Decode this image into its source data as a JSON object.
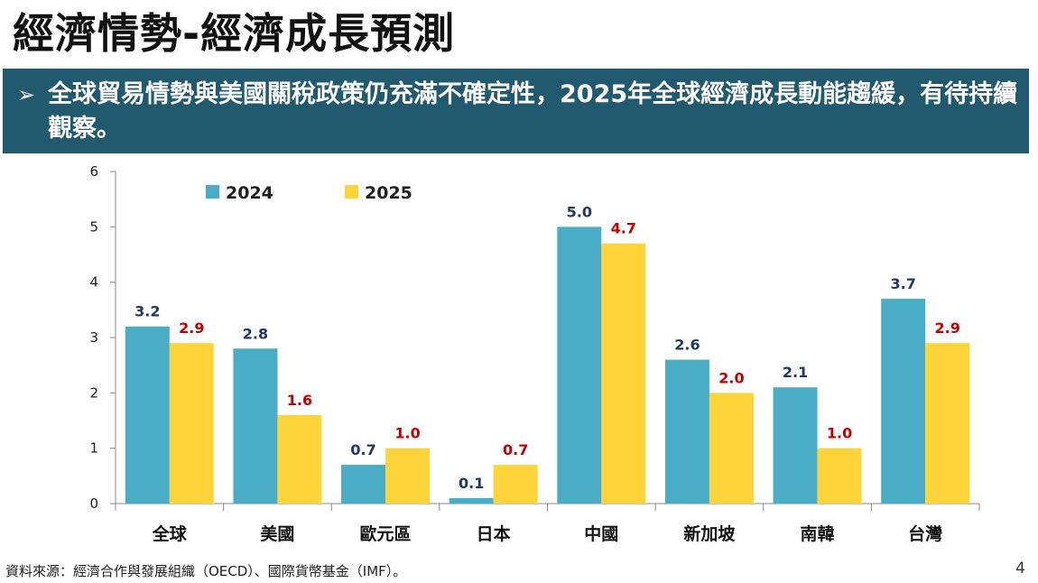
{
  "slide": {
    "title": "經濟情勢-經濟成長預測",
    "bullet_marker": "➢",
    "bullet_text": "全球貿易情勢與美國關稅政策仍充滿不確定性，2025年全球經濟成長動能趨緩，有待持續觀察。",
    "source": "資料來源：經濟合作與發展組織（OECD）、國際貨幣基金（IMF）。",
    "page_number": "4"
  },
  "chart_data": {
    "type": "bar",
    "title": "",
    "xlabel": "",
    "ylabel": "",
    "ylim": [
      0,
      6
    ],
    "yticks": [
      0,
      1,
      2,
      3,
      4,
      5,
      6
    ],
    "grid": false,
    "legend_position": "top-left",
    "categories": [
      "全球",
      "美國",
      "歐元區",
      "日本",
      "中國",
      "新加坡",
      "南韓",
      "台灣"
    ],
    "series": [
      {
        "name": "2024",
        "color": "#4bacc6",
        "label_color": "#1f3864",
        "values": [
          3.2,
          2.8,
          0.7,
          0.1,
          5.0,
          2.6,
          2.1,
          3.7
        ]
      },
      {
        "name": "2025",
        "color": "#ffd43b",
        "label_color": "#c00000",
        "values": [
          2.9,
          1.6,
          1.0,
          0.7,
          4.7,
          2.0,
          1.0,
          2.9
        ]
      }
    ]
  }
}
